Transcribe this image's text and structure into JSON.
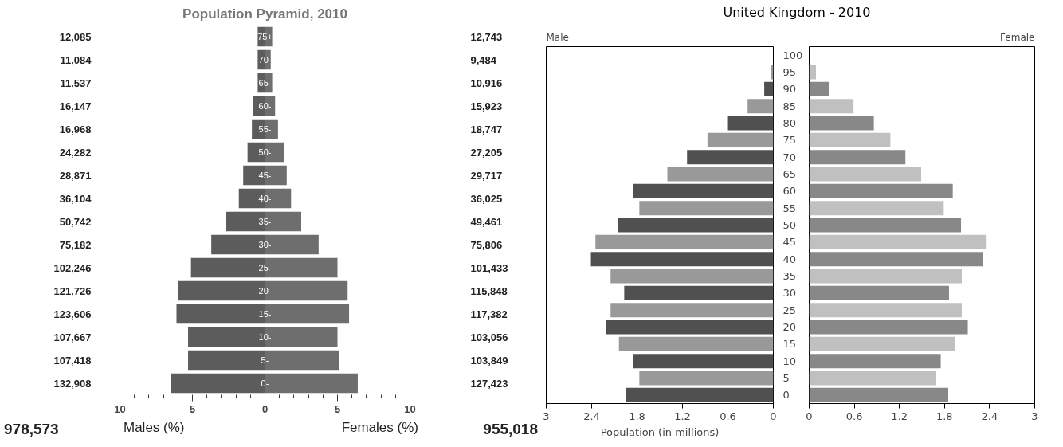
{
  "chart_data": [
    {
      "type": "bar",
      "orientation": "horizontal",
      "title": "Population Pyramid, 2010",
      "categories": [
        "75+",
        "70-",
        "65-",
        "60-",
        "55-",
        "50-",
        "45-",
        "40-",
        "35-",
        "30-",
        "25-",
        "20-",
        "15-",
        "10-",
        "5-",
        "0-"
      ],
      "series": [
        {
          "name": "Males (%)",
          "color": "#5c5c5c",
          "values": [
            -0.5,
            -0.5,
            -0.5,
            -0.8,
            -0.9,
            -1.2,
            -1.5,
            -1.8,
            -2.7,
            -3.7,
            -5.1,
            -6.0,
            -6.1,
            -5.3,
            -5.3,
            -6.5
          ]
        },
        {
          "name": "Females (%)",
          "color": "#6e6e6e",
          "values": [
            0.5,
            0.4,
            0.5,
            0.7,
            0.9,
            1.3,
            1.5,
            1.8,
            2.5,
            3.7,
            5.0,
            5.7,
            5.8,
            5.0,
            5.1,
            6.4
          ]
        }
      ],
      "stacked": true,
      "xlim": [
        -10,
        10
      ],
      "xticks": [
        {
          "value": -10,
          "label": "10"
        },
        {
          "value": -5,
          "label": "5"
        },
        0,
        {
          "value": 5,
          "label": "5"
        },
        10,
        {
          "value": -9,
          "label": null
        },
        {
          "value": -8,
          "label": null
        },
        {
          "value": -7,
          "label": null
        },
        {
          "value": -6,
          "label": null
        },
        {
          "value": -4,
          "label": null
        },
        {
          "value": -3,
          "label": null
        },
        {
          "value": -2,
          "label": null
        },
        {
          "value": -1,
          "label": null
        },
        {
          "value": 1,
          "label": null
        },
        {
          "value": 2,
          "label": null
        },
        {
          "value": 3,
          "label": null
        },
        {
          "value": 4,
          "label": null
        },
        {
          "value": 6,
          "label": null
        },
        {
          "value": 7,
          "label": null
        },
        {
          "value": 8,
          "label": null
        },
        {
          "value": 9,
          "label": null
        }
      ],
      "annotations": [
        "12,085",
        "11,084",
        "11,537",
        "16,147",
        "16,968",
        "24,282",
        "28,871",
        "36,104",
        "50,742",
        "75,182",
        "102,246",
        "121,726",
        "123,606",
        "107,667",
        "107,418",
        "132,908",
        "12,743",
        "9,484",
        "10,916",
        "15,923",
        "18,747",
        "27,205",
        "29,717",
        "36,025",
        "49,461",
        "75,806",
        "101,433",
        "115,848",
        "117,382",
        "103,056",
        "103,849",
        "127,423",
        "978,573",
        "955,018"
      ]
    },
    {
      "type": "bar",
      "orientation": "horizontal",
      "title": "United Kingdom - 2010",
      "xlabel": "Population (in millions)",
      "categories": [
        "100",
        "95",
        "90",
        "85",
        "80",
        "75",
        "70",
        "65",
        "60",
        "55",
        "50",
        "45",
        "40",
        "35",
        "30",
        "25",
        "20",
        "15",
        "10",
        "5",
        "0"
      ],
      "series": [
        {
          "name": "Male",
          "colors": [
            "#505050",
            "#999999",
            "#505050",
            "#999999",
            "#505050",
            "#999999",
            "#505050",
            "#999999",
            "#505050",
            "#999999",
            "#505050",
            "#999999",
            "#505050",
            "#999999",
            "#505050",
            "#999999",
            "#505050",
            "#999999",
            "#505050",
            "#999999",
            "#505050"
          ],
          "values": [
            null,
            0.03,
            0.12,
            0.34,
            0.61,
            0.87,
            1.14,
            1.4,
            1.85,
            1.77,
            2.05,
            2.35,
            2.41,
            2.15,
            1.97,
            2.15,
            2.21,
            2.04,
            1.85,
            1.77,
            1.95
          ]
        }
      ],
      "xlim": [
        3,
        0
      ],
      "xticks": [
        3,
        2.4,
        1.8,
        1.2,
        0.6,
        0
      ]
    },
    {
      "type": "bar",
      "orientation": "horizontal",
      "categories": [
        "100",
        "95",
        "90",
        "85",
        "80",
        "75",
        "70",
        "65",
        "60",
        "55",
        "50",
        "45",
        "40",
        "35",
        "30",
        "25",
        "20",
        "15",
        "10",
        "5",
        "0"
      ],
      "series": [
        {
          "name": "Female",
          "colors": [
            "#888888",
            "#c0c0c0",
            "#888888",
            "#c0c0c0",
            "#888888",
            "#c0c0c0",
            "#888888",
            "#c0c0c0",
            "#888888",
            "#c0c0c0",
            "#888888",
            "#c0c0c0",
            "#888888",
            "#c0c0c0",
            "#888888",
            "#c0c0c0",
            "#888888",
            "#c0c0c0",
            "#888888",
            "#c0c0c0",
            "#888888"
          ],
          "values": [
            null,
            0.09,
            0.26,
            0.59,
            0.86,
            1.08,
            1.28,
            1.49,
            1.91,
            1.79,
            2.02,
            2.35,
            2.31,
            2.03,
            1.86,
            2.03,
            2.11,
            1.94,
            1.75,
            1.68,
            1.85
          ]
        }
      ],
      "xlim": [
        0,
        3
      ],
      "xticks": [
        0,
        0.6,
        1.2,
        1.8,
        2.4,
        3
      ],
      "tick_labels": "x"
    }
  ]
}
